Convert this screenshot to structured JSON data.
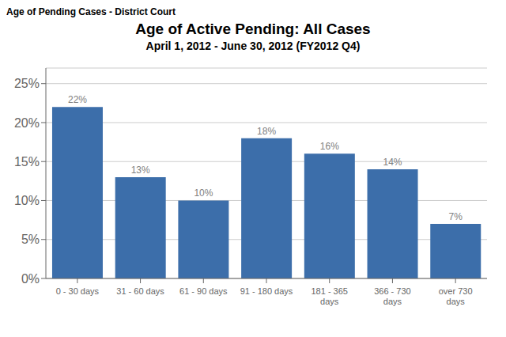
{
  "chart_data": {
    "type": "bar",
    "title": "Age of Active Pending: All Cases",
    "subtitle": "April 1, 2012 - June 30, 2012 (FY2012 Q4)",
    "annotations": [
      "Age of Pending Cases - District Court"
    ],
    "categories": [
      "0 - 30 days",
      "31 - 60 days",
      "61 - 90 days",
      "91 - 180 days",
      "181 - 365\ndays",
      "366 - 730\ndays",
      "over 730\ndays"
    ],
    "values": [
      22,
      13,
      10,
      18,
      16,
      14,
      7
    ],
    "value_labels": [
      "22%",
      "13%",
      "10%",
      "18%",
      "16%",
      "14%",
      "7%"
    ],
    "data_labels": true,
    "color": "#3C6EAA",
    "ylim": [
      0,
      27
    ],
    "yticks": [
      {
        "value": 0,
        "label": "0%"
      },
      {
        "value": 5,
        "label": "5%"
      },
      {
        "value": 10,
        "label": "10%"
      },
      {
        "value": 15,
        "label": "15%"
      },
      {
        "value": 20,
        "label": "20%"
      },
      {
        "value": 25,
        "label": "25%"
      }
    ],
    "grid": true
  }
}
